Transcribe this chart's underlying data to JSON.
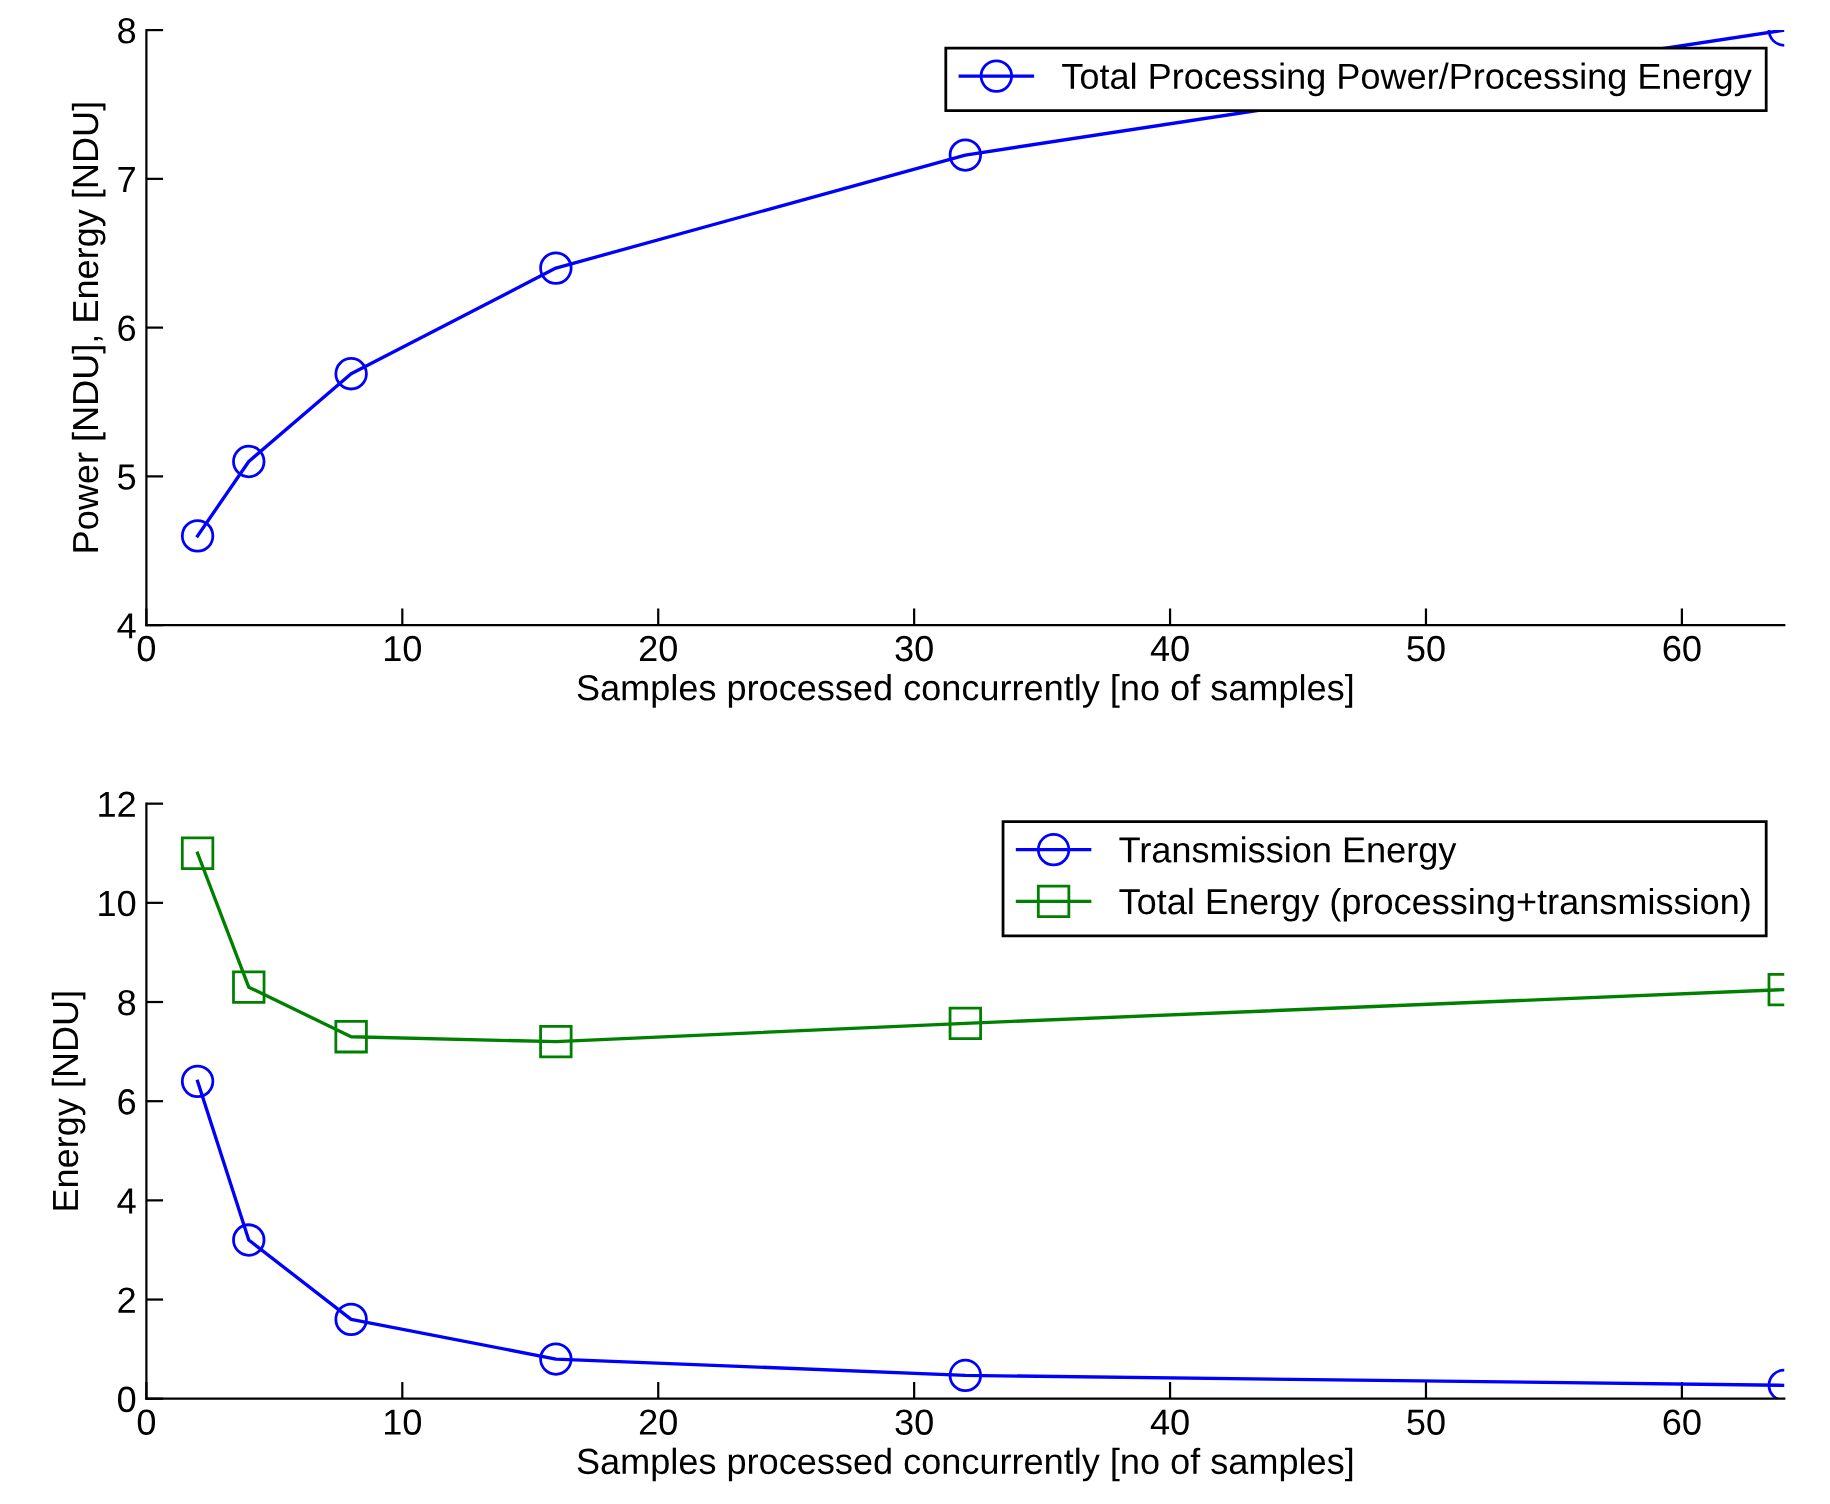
{
  "chart_data": [
    {
      "type": "line",
      "xlabel": "Samples processed concurrently [no of samples]",
      "ylabel": "Power [NDU], Energy [NDU]",
      "x": [
        2,
        4,
        8,
        16,
        32,
        64
      ],
      "xlim": [
        0,
        64
      ],
      "xticks": [
        0,
        10,
        20,
        30,
        40,
        50,
        60
      ],
      "ylim": [
        4,
        8
      ],
      "yticks": [
        4,
        5,
        6,
        7,
        8
      ],
      "legend": "top right",
      "grid": false,
      "series": [
        {
          "name": "Total Processing Power/Processing Energy",
          "color": "#0000ff",
          "marker": "circle",
          "values": [
            4.6,
            5.1,
            5.69,
            6.4,
            7.16,
            8.0
          ]
        }
      ]
    },
    {
      "type": "line",
      "xlabel": "Samples processed concurrently [no of samples]",
      "ylabel": "Energy [NDU]",
      "x": [
        2,
        4,
        8,
        16,
        32,
        64
      ],
      "xlim": [
        0,
        64
      ],
      "xticks": [
        0,
        10,
        20,
        30,
        40,
        50,
        60
      ],
      "ylim": [
        0,
        12
      ],
      "yticks": [
        0,
        2,
        4,
        6,
        8,
        10,
        12
      ],
      "legend": "top right",
      "grid": false,
      "series": [
        {
          "name": "Transmission Energy",
          "color": "#0000ff",
          "marker": "circle",
          "values": [
            6.4,
            3.2,
            1.6,
            0.8,
            0.47,
            0.27
          ]
        },
        {
          "name": "Total Energy (processing+transmission)",
          "color": "#008000",
          "marker": "square",
          "values": [
            11.0,
            8.3,
            7.3,
            7.2,
            7.57,
            8.25
          ]
        }
      ]
    }
  ]
}
